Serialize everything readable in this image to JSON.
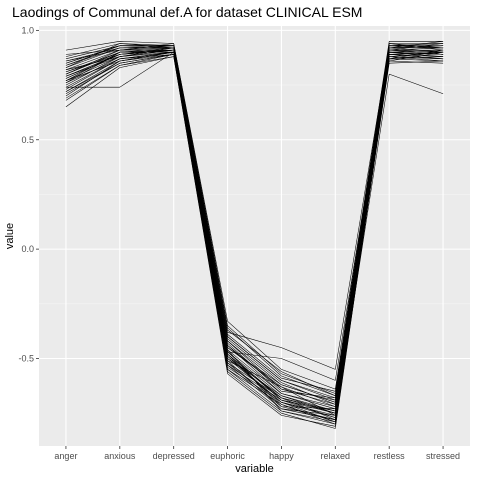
{
  "chart_data": {
    "type": "line",
    "title": "Laodings of Communal def.A for dataset CLINICAL ESM",
    "xlabel": "variable",
    "ylabel": "value",
    "categories": [
      "anger",
      "anxious",
      "depressed",
      "euphoric",
      "happy",
      "relaxed",
      "restless",
      "stressed"
    ],
    "ylim": [
      -0.9,
      1.02
    ],
    "yticks": [
      -0.5,
      0.0,
      0.5,
      1.0
    ],
    "ytick_labels": [
      "-0.5",
      "0.0",
      "0.5",
      "1.0"
    ],
    "grid": true,
    "legend": "none",
    "colors": {
      "panel": "#ebebeb",
      "grid_major": "#ffffff",
      "grid_minor": "#f5f5f5",
      "line": "#000000"
    },
    "series": [
      {
        "values": [
          0.8,
          0.9,
          0.91,
          -0.46,
          -0.66,
          -0.73,
          0.91,
          0.9
        ]
      },
      {
        "values": [
          0.76,
          0.87,
          0.9,
          -0.5,
          -0.7,
          -0.76,
          0.89,
          0.88
        ]
      },
      {
        "values": [
          0.83,
          0.92,
          0.92,
          -0.42,
          -0.62,
          -0.7,
          0.92,
          0.92
        ]
      },
      {
        "values": [
          0.72,
          0.85,
          0.89,
          -0.55,
          -0.74,
          -0.79,
          0.87,
          0.86
        ]
      },
      {
        "values": [
          0.88,
          0.94,
          0.93,
          -0.36,
          -0.58,
          -0.67,
          0.94,
          0.94
        ]
      },
      {
        "values": [
          0.78,
          0.89,
          0.91,
          -0.48,
          -0.68,
          -0.75,
          0.9,
          0.89
        ]
      },
      {
        "values": [
          0.65,
          0.83,
          0.88,
          -0.57,
          -0.76,
          -0.81,
          0.86,
          0.85
        ]
      },
      {
        "values": [
          0.91,
          0.95,
          0.94,
          -0.33,
          -0.55,
          -0.64,
          0.95,
          0.95
        ]
      },
      {
        "values": [
          0.74,
          0.74,
          0.9,
          -0.52,
          -0.72,
          -0.78,
          0.8,
          0.71
        ]
      },
      {
        "values": [
          0.82,
          0.91,
          0.92,
          -0.44,
          -0.64,
          -0.71,
          0.91,
          0.91
        ]
      },
      {
        "values": [
          0.79,
          0.88,
          0.91,
          -0.47,
          -0.67,
          -0.74,
          0.88,
          0.9
        ]
      },
      {
        "values": [
          0.7,
          0.86,
          0.89,
          -0.53,
          -0.69,
          -0.77,
          0.89,
          0.87
        ]
      },
      {
        "values": [
          0.85,
          0.93,
          0.93,
          -0.4,
          -0.6,
          -0.69,
          0.93,
          0.92
        ]
      },
      {
        "values": [
          0.77,
          0.9,
          0.9,
          -0.49,
          -0.71,
          -0.8,
          0.9,
          0.89
        ]
      },
      {
        "values": [
          0.81,
          0.89,
          0.92,
          -0.45,
          -0.63,
          -0.72,
          0.92,
          0.93
        ]
      },
      {
        "values": [
          0.68,
          0.84,
          0.88,
          -0.56,
          -0.75,
          -0.82,
          0.87,
          0.88
        ]
      },
      {
        "values": [
          0.86,
          0.92,
          0.93,
          -0.38,
          -0.45,
          -0.55,
          0.93,
          0.94
        ]
      },
      {
        "values": [
          0.75,
          0.88,
          0.9,
          -0.51,
          -0.73,
          -0.76,
          0.88,
          0.86
        ]
      },
      {
        "values": [
          0.84,
          0.93,
          0.92,
          -0.43,
          -0.65,
          -0.68,
          0.94,
          0.91
        ]
      },
      {
        "values": [
          0.73,
          0.87,
          0.89,
          -0.54,
          -0.7,
          -0.79,
          0.86,
          0.9
        ]
      },
      {
        "values": [
          0.89,
          0.91,
          0.94,
          -0.35,
          -0.57,
          -0.66,
          0.92,
          0.95
        ]
      },
      {
        "values": [
          0.8,
          0.9,
          0.91,
          -0.47,
          -0.69,
          -0.74,
          0.9,
          0.88
        ]
      },
      {
        "values": [
          0.77,
          0.86,
          0.9,
          -0.5,
          -0.67,
          -0.75,
          0.89,
          0.9
        ]
      },
      {
        "values": [
          0.83,
          0.94,
          0.92,
          -0.41,
          -0.61,
          -0.71,
          0.91,
          0.92
        ]
      },
      {
        "values": [
          0.79,
          0.89,
          0.91,
          -0.48,
          -0.72,
          -0.73,
          0.9,
          0.89
        ]
      },
      {
        "values": [
          0.71,
          0.85,
          0.89,
          -0.52,
          -0.68,
          -0.78,
          0.88,
          0.87
        ]
      },
      {
        "values": [
          0.86,
          0.91,
          0.93,
          -0.39,
          -0.59,
          -0.65,
          0.93,
          0.93
        ]
      },
      {
        "values": [
          0.76,
          0.9,
          0.9,
          -0.49,
          -0.7,
          -0.77,
          0.87,
          0.91
        ]
      },
      {
        "values": [
          0.82,
          0.88,
          0.92,
          -0.44,
          -0.66,
          -0.72,
          0.92,
          0.9
        ]
      },
      {
        "values": [
          0.74,
          0.87,
          0.9,
          -0.51,
          -0.63,
          -0.76,
          0.89,
          0.88
        ]
      },
      {
        "values": [
          0.87,
          0.93,
          0.93,
          -0.37,
          -0.56,
          -0.67,
          0.91,
          0.94
        ]
      },
      {
        "values": [
          0.78,
          0.89,
          0.91,
          -0.46,
          -0.74,
          -0.8,
          0.9,
          0.89
        ]
      },
      {
        "values": [
          0.81,
          0.9,
          0.92,
          -0.45,
          -0.62,
          -0.7,
          0.93,
          0.92
        ]
      },
      {
        "values": [
          0.69,
          0.84,
          0.89,
          -0.55,
          -0.71,
          -0.79,
          0.85,
          0.86
        ]
      },
      {
        "values": [
          0.84,
          0.92,
          0.92,
          -0.42,
          -0.64,
          -0.69,
          0.92,
          0.93
        ]
      },
      {
        "values": [
          0.77,
          0.88,
          0.91,
          -0.48,
          -0.69,
          -0.75,
          0.89,
          0.9
        ]
      },
      {
        "values": [
          0.8,
          0.91,
          0.91,
          -0.47,
          -0.5,
          -0.6,
          0.91,
          0.89
        ]
      },
      {
        "values": [
          0.72,
          0.86,
          0.9,
          -0.53,
          -0.73,
          -0.78,
          0.88,
          0.87
        ]
      },
      {
        "values": [
          0.85,
          0.93,
          0.93,
          -0.4,
          -0.6,
          -0.68,
          0.94,
          0.92
        ]
      },
      {
        "values": [
          0.79,
          0.89,
          0.91,
          -0.49,
          -0.68,
          -0.74,
          0.9,
          0.91
        ]
      }
    ]
  }
}
